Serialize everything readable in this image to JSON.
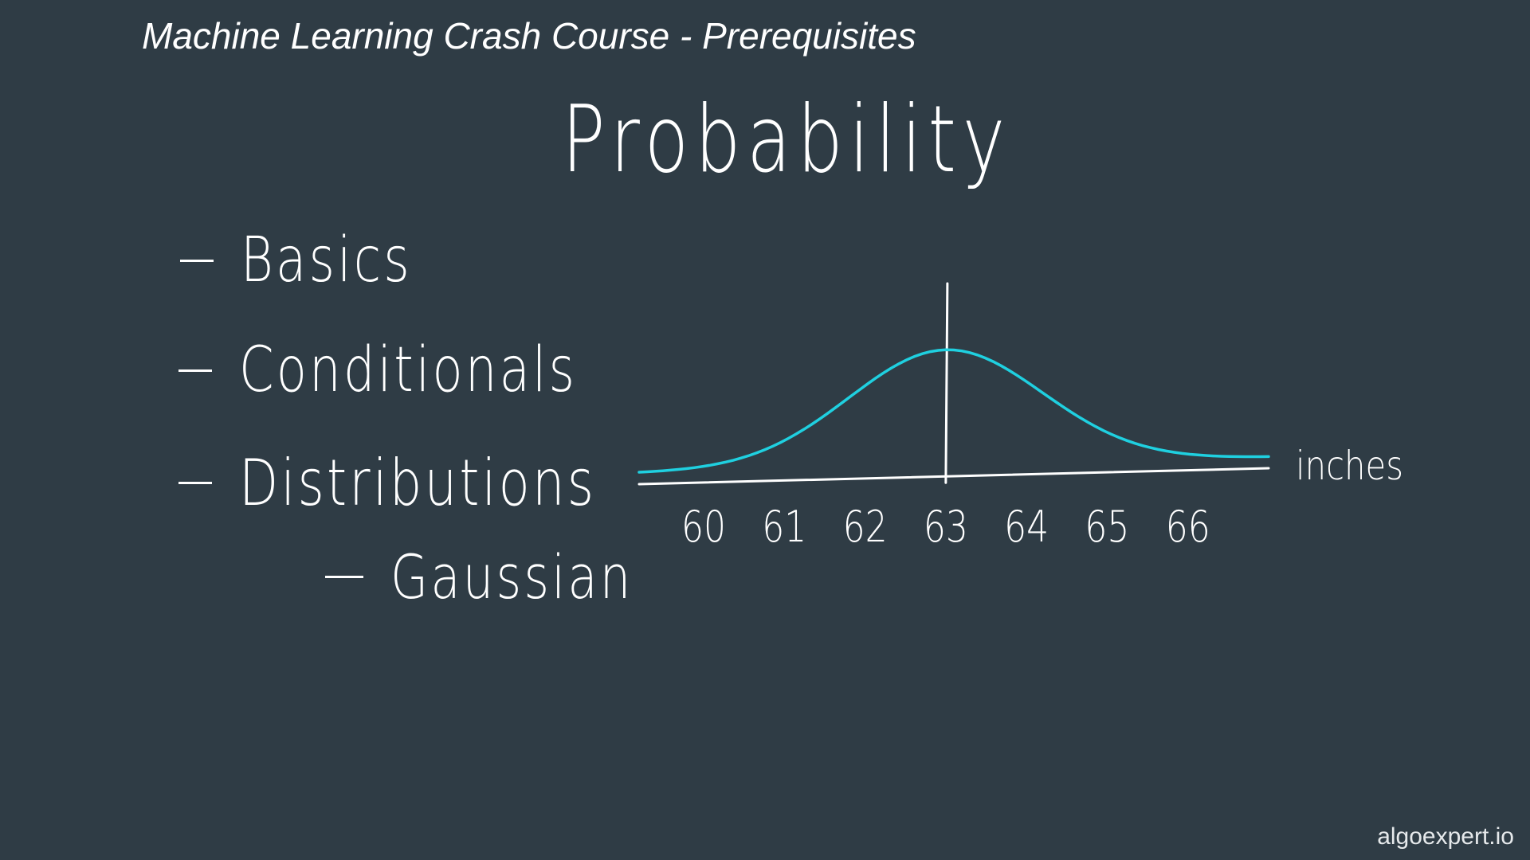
{
  "header": {
    "course_title": "Machine Learning Crash Course - Prerequisites"
  },
  "slide": {
    "heading": "Probability",
    "bullets": [
      {
        "label": "Basics",
        "level": 1
      },
      {
        "label": "Conditionals",
        "level": 1
      },
      {
        "label": "Distributions",
        "level": 1
      },
      {
        "label": "Gaussian",
        "level": 2
      }
    ]
  },
  "colors": {
    "background": "#2f3c45",
    "ink": "#ffffff",
    "curve": "#1fd0e0"
  },
  "chart_data": {
    "type": "line",
    "x": [
      60,
      61,
      62,
      63,
      64,
      65,
      66
    ],
    "tick_labels": [
      "60",
      "61",
      "62",
      "63",
      "64",
      "65",
      "66"
    ],
    "xlabel": "inches",
    "ylabel": "",
    "title": "",
    "curve": "gaussian",
    "mean": 63,
    "std_dev": 1.2,
    "xlim": [
      59.2,
      67.0
    ],
    "grid": false,
    "legend": false
  },
  "footer": {
    "watermark": "algoexpert.io"
  }
}
